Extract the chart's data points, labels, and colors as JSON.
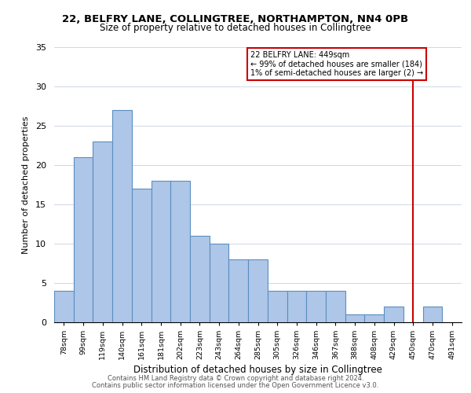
{
  "title1": "22, BELFRY LANE, COLLINGTREE, NORTHAMPTON, NN4 0PB",
  "title2": "Size of property relative to detached houses in Collingtree",
  "xlabel": "Distribution of detached houses by size in Collingtree",
  "ylabel": "Number of detached properties",
  "bar_labels": [
    "78sqm",
    "99sqm",
    "119sqm",
    "140sqm",
    "161sqm",
    "181sqm",
    "202sqm",
    "223sqm",
    "243sqm",
    "264sqm",
    "285sqm",
    "305sqm",
    "326sqm",
    "346sqm",
    "367sqm",
    "388sqm",
    "408sqm",
    "429sqm",
    "450sqm",
    "470sqm",
    "491sqm"
  ],
  "bar_values": [
    4,
    21,
    23,
    27,
    17,
    18,
    18,
    11,
    10,
    8,
    8,
    4,
    4,
    4,
    4,
    1,
    1,
    2,
    0,
    2,
    0
  ],
  "bar_color": "#aec6e8",
  "bar_edge_color": "#5a8fc2",
  "annotation_title": "22 BELFRY LANE: 449sqm",
  "annotation_line1": "← 99% of detached houses are smaller (184)",
  "annotation_line2": "1% of semi-detached houses are larger (2) →",
  "vline_x_index": 18,
  "vline_color": "#cc0000",
  "annotation_box_edge_color": "#cc0000",
  "ylim": [
    0,
    35
  ],
  "yticks": [
    0,
    5,
    10,
    15,
    20,
    25,
    30,
    35
  ],
  "footer1": "Contains HM Land Registry data © Crown copyright and database right 2024.",
  "footer2": "Contains public sector information licensed under the Open Government Licence v3.0.",
  "bg_color": "#ffffff",
  "grid_color": "#d0d8e4"
}
